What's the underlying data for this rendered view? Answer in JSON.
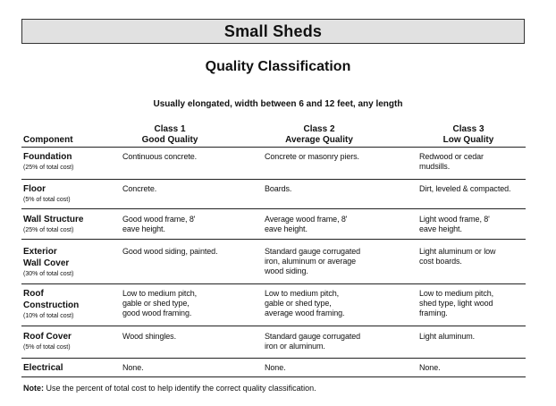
{
  "header": {
    "title": "Small Sheds"
  },
  "subtitle": "Quality Classification",
  "description": "Usually elongated, width between 6 and 12 feet, any length",
  "columns": {
    "component": "Component",
    "class1": {
      "line1": "Class 1",
      "line2": "Good Quality"
    },
    "class2": {
      "line1": "Class 2",
      "line2": "Average Quality"
    },
    "class3": {
      "line1": "Class 3",
      "line2": "Low Quality"
    }
  },
  "rows": [
    {
      "label": [
        "Foundation"
      ],
      "sub": "(25% of total cost)",
      "c1": [
        "Continuous concrete."
      ],
      "c2": [
        "Concrete or masonry piers."
      ],
      "c3": [
        "Redwood or cedar",
        "mudsills."
      ]
    },
    {
      "label": [
        "Floor"
      ],
      "sub": "(5% of total cost)",
      "c1": [
        "Concrete."
      ],
      "c2": [
        "Boards."
      ],
      "c3": [
        "Dirt, leveled & compacted."
      ]
    },
    {
      "label": [
        "Wall Structure"
      ],
      "sub": "(25% of total cost)",
      "c1": [
        "Good wood frame, 8'",
        "eave height."
      ],
      "c2": [
        "Average wood frame, 8'",
        "eave height."
      ],
      "c3": [
        "Light wood frame, 8'",
        "eave height."
      ]
    },
    {
      "label": [
        "Exterior",
        "Wall Cover"
      ],
      "sub": "(30% of total cost)",
      "c1": [
        "Good wood siding, painted."
      ],
      "c2": [
        "Standard gauge corrugated",
        "iron, aluminum or average",
        "wood siding."
      ],
      "c3": [
        "Light aluminum or low",
        "cost boards."
      ]
    },
    {
      "label": [
        "Roof",
        "Construction"
      ],
      "sub": "(10% of total cost)",
      "c1": [
        "Low to medium pitch,",
        "gable or shed type,",
        "good wood framing."
      ],
      "c2": [
        "Low to medium pitch,",
        "gable or shed type,",
        "average wood framing."
      ],
      "c3": [
        "Low to medium pitch,",
        "shed type, light wood",
        "framing."
      ]
    },
    {
      "label": [
        "Roof Cover"
      ],
      "sub": "(5% of total cost)",
      "c1": [
        "Wood shingles."
      ],
      "c2": [
        "Standard gauge corrugated",
        "iron or aluminum."
      ],
      "c3": [
        "Light aluminum."
      ]
    },
    {
      "label": [
        "Electrical"
      ],
      "sub": "",
      "c1": [
        "None."
      ],
      "c2": [
        "None."
      ],
      "c3": [
        "None."
      ]
    }
  ],
  "note": {
    "label": "Note:",
    "text": "Use the percent of total cost to help identify the correct quality classification."
  }
}
